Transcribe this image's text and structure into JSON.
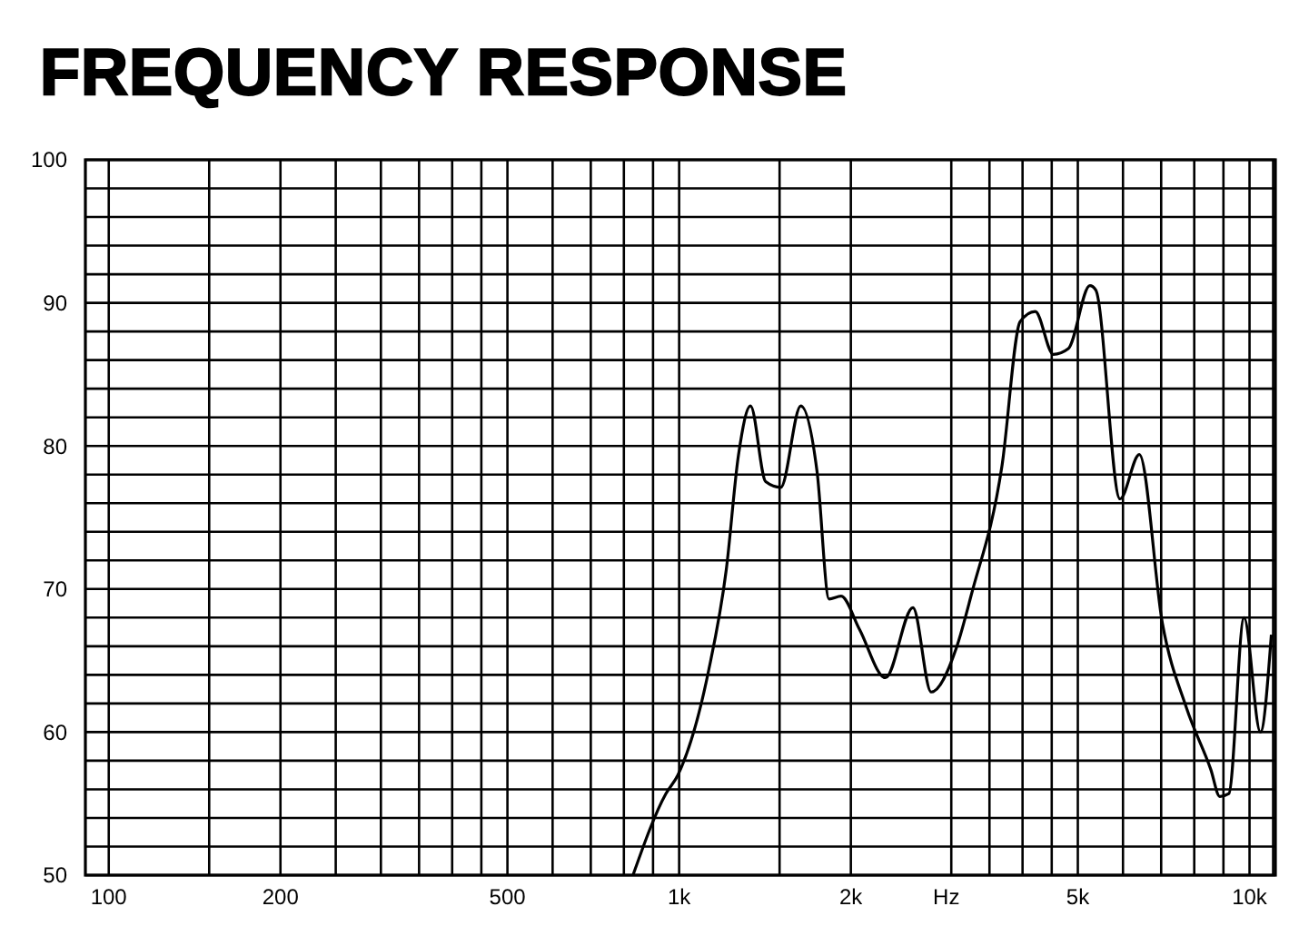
{
  "chart_data": {
    "type": "line",
    "title": "FREQUENCY RESPONSE",
    "xlabel": "Hz",
    "log": "x",
    "grid": true,
    "marker": "none",
    "line_style": "solid",
    "xlim": [
      91,
      11100
    ],
    "xticks": [
      100,
      {
        "value": 150,
        "label": null
      },
      200,
      {
        "value": 250,
        "label": null
      },
      {
        "value": 300,
        "label": null
      },
      {
        "value": 350,
        "label": null
      },
      {
        "value": 400,
        "label": null
      },
      {
        "value": 450,
        "label": null
      },
      500,
      {
        "value": 600,
        "label": null
      },
      {
        "value": 700,
        "label": null
      },
      {
        "value": 800,
        "label": null
      },
      {
        "value": 900,
        "label": null
      },
      {
        "value": 1000,
        "label": "1k"
      },
      {
        "value": 1500,
        "label": null
      },
      {
        "value": 2000,
        "label": "2k"
      },
      {
        "value": 3000,
        "label": null
      },
      {
        "value": 3500,
        "label": null
      },
      {
        "value": 4000,
        "label": null
      },
      {
        "value": 4500,
        "label": null
      },
      {
        "value": 5000,
        "label": "5k"
      },
      {
        "value": 6000,
        "label": null
      },
      {
        "value": 7000,
        "label": null
      },
      {
        "value": 8000,
        "label": null
      },
      {
        "value": 9000,
        "label": null
      },
      {
        "value": 10000,
        "label": "10k"
      },
      {
        "value": 11000,
        "label": null
      }
    ],
    "ylim": [
      50,
      100
    ],
    "yticks": [
      50,
      {
        "value": 52,
        "label": null
      },
      {
        "value": 54,
        "label": null
      },
      {
        "value": 56,
        "label": null
      },
      {
        "value": 58,
        "label": null
      },
      60,
      {
        "value": 62,
        "label": null
      },
      {
        "value": 64,
        "label": null
      },
      {
        "value": 66,
        "label": null
      },
      {
        "value": 68,
        "label": null
      },
      70,
      {
        "value": 72,
        "label": null
      },
      {
        "value": 74,
        "label": null
      },
      {
        "value": 76,
        "label": null
      },
      {
        "value": 78,
        "label": null
      },
      80,
      {
        "value": 82,
        "label": null
      },
      {
        "value": 84,
        "label": null
      },
      {
        "value": 86,
        "label": null
      },
      {
        "value": 88,
        "label": null
      },
      90,
      {
        "value": 92,
        "label": null
      },
      {
        "value": 94,
        "label": null
      },
      {
        "value": 96,
        "label": null
      },
      {
        "value": 98,
        "label": null
      },
      100
    ],
    "x": [
      830,
      948,
      995,
      1125,
      1210,
      1271,
      1334,
      1418,
      1507,
      1634,
      1745,
      1832,
      1923,
      2070,
      2300,
      2570,
      2766,
      3063,
      3258,
      3681,
      3962,
      4210,
      4530,
      4812,
      5250,
      5375,
      5928,
      6410,
      7035,
      7750,
      8550,
      8870,
      9200,
      9780,
      10450,
      10920
    ],
    "series": [
      {
        "color": "#000000",
        "values": [
          50,
          55.7,
          57,
          64.2,
          71.4,
          79.4,
          82.8,
          77.5,
          77.1,
          82.8,
          78.2,
          69.3,
          69.5,
          67.2,
          63.8,
          68.7,
          62.8,
          65.9,
          69.7,
          78.6,
          88.7,
          89.4,
          86.4,
          86.8,
          91.2,
          90.9,
          76.3,
          79.4,
          67.6,
          61.7,
          57.4,
          55.5,
          55.7,
          68,
          60,
          66.8
        ]
      }
    ]
  }
}
